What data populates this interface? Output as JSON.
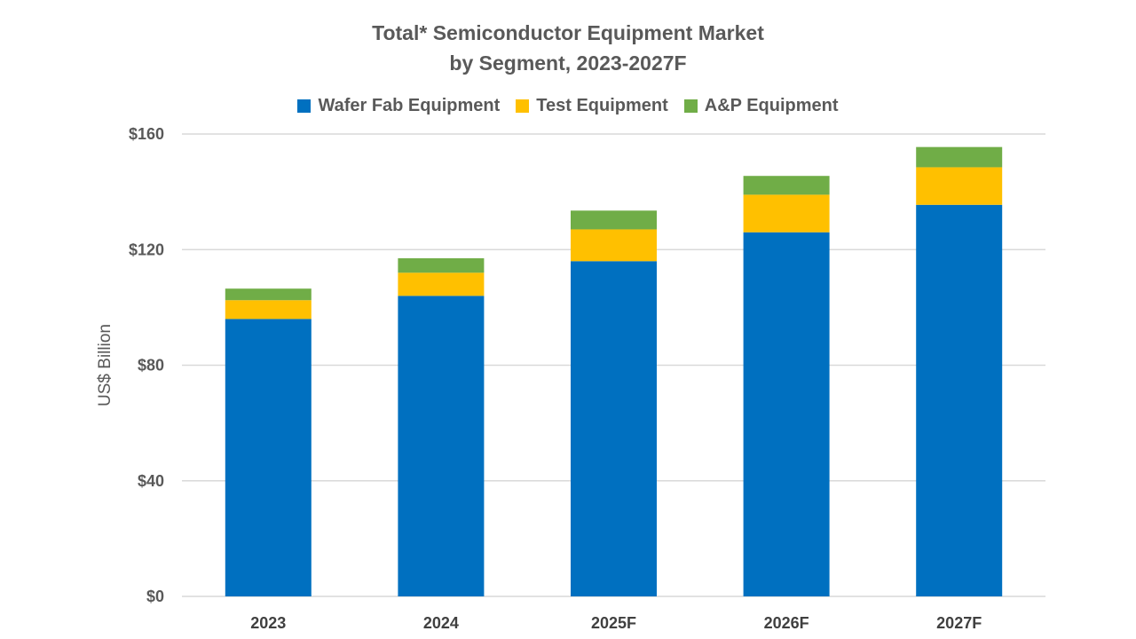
{
  "chart_data": {
    "type": "bar",
    "stacked": true,
    "title": "Total* Semiconductor Equipment Market",
    "subtitle": "by Segment, 2023-2027F",
    "xlabel": "",
    "ylabel": "US$ Billion",
    "categories": [
      "2023",
      "2024",
      "2025F",
      "2026F",
      "2027F"
    ],
    "ylim": [
      0,
      160
    ],
    "yticks": [
      0,
      40,
      80,
      120,
      160
    ],
    "ytick_labels": [
      "$0",
      "$40",
      "$80",
      "$120",
      "$160"
    ],
    "grid": true,
    "legend_position": "top",
    "series": [
      {
        "name": "Wafer Fab Equipment",
        "color": "#0070C0",
        "values": [
          96,
          104,
          116,
          126,
          135.5
        ]
      },
      {
        "name": "Test Equipment",
        "color": "#FFC000",
        "values": [
          6.5,
          8,
          11,
          13,
          13
        ]
      },
      {
        "name": "A&P Equipment",
        "color": "#70AD47",
        "values": [
          4,
          5,
          6.5,
          6.5,
          7
        ]
      }
    ]
  }
}
